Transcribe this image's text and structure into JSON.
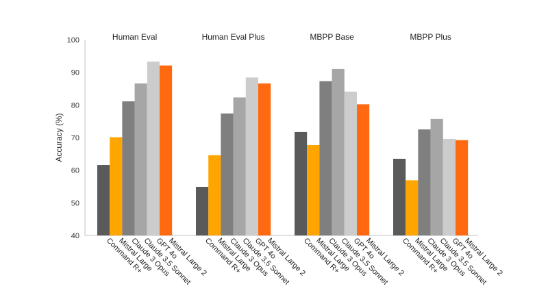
{
  "chart_data": {
    "type": "bar",
    "ylabel": "Accuracy (%)",
    "ylim": [
      40,
      100
    ],
    "yticks": [
      40,
      50,
      60,
      70,
      80,
      90,
      100
    ],
    "grid": false,
    "models": [
      "Command R+",
      "Mistral Large",
      "Claude 3 Opus",
      "Claude 3.5 Sonnet",
      "GPT 4o",
      "Mistral Large 2"
    ],
    "colors": [
      "#5a5a5a",
      "#ffa500",
      "#7f7f7f",
      "#a6a6a6",
      "#cccccc",
      "#ff6a10"
    ],
    "groups": [
      {
        "title": "Human Eval",
        "values": [
          61.6,
          70.1,
          81.1,
          86.6,
          93.3,
          92.1
        ]
      },
      {
        "title": "Human Eval Plus",
        "values": [
          54.9,
          64.6,
          77.4,
          82.3,
          88.4,
          86.6
        ]
      },
      {
        "title": "MBPP Base",
        "values": [
          71.7,
          67.7,
          87.3,
          91.0,
          84.1,
          80.2
        ]
      },
      {
        "title": "MBPP Plus",
        "values": [
          63.5,
          56.9,
          72.5,
          75.7,
          69.6,
          69.2
        ]
      }
    ]
  }
}
